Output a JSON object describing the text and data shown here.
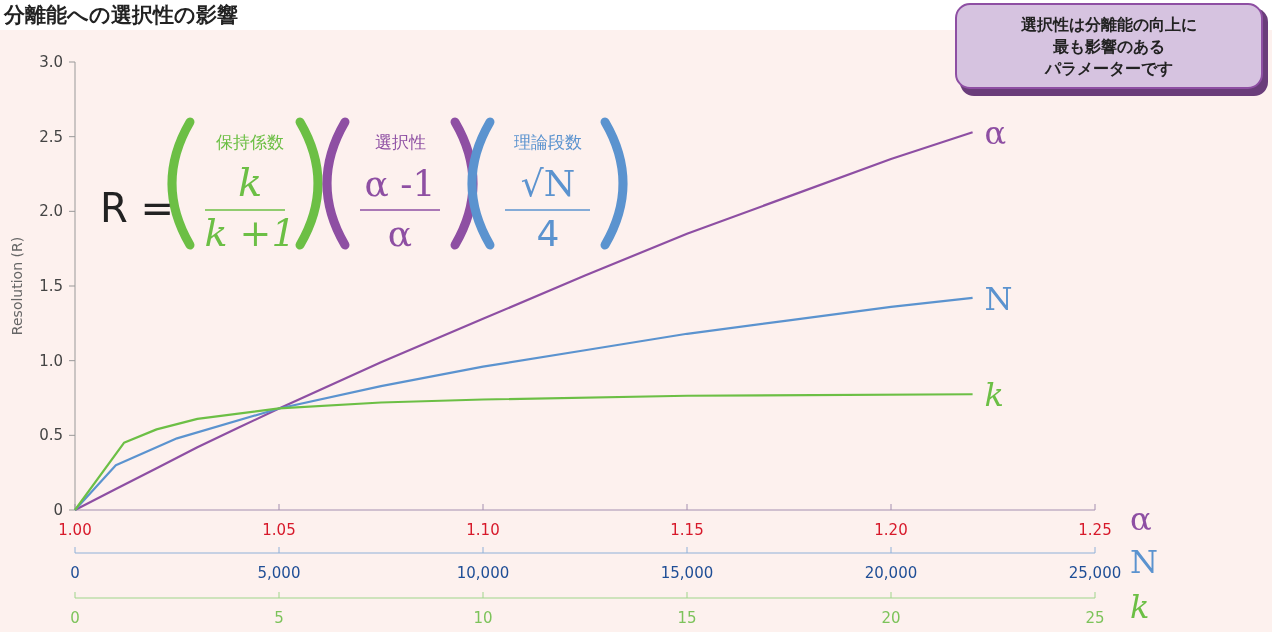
{
  "chart_data": [
    {
      "type": "line",
      "title": "分離能への選択性の影響",
      "ylabel": "Resolution (R)",
      "xlabel": "α",
      "x2label": "N",
      "ylim": [
        0,
        3
      ],
      "yticks": [
        0,
        {
          "value": 0.5,
          "label": "0.5"
        },
        {
          "value": 1,
          "label": "1.0"
        },
        {
          "value": 1.5,
          "label": "1.5"
        },
        {
          "value": 2,
          "label": "2.0"
        },
        {
          "value": 2.5,
          "label": "2.5"
        },
        {
          "value": 3,
          "label": "3.0"
        }
      ],
      "xlim": [
        1,
        1.25
      ],
      "xticks": [
        {
          "value": 1,
          "label": "1.00"
        },
        {
          "value": 1.05,
          "label": "1.05"
        },
        {
          "value": 1.1,
          "label": "1.10"
        },
        {
          "value": 1.15,
          "label": "1.15"
        },
        {
          "value": 1.2,
          "label": "1.20"
        },
        {
          "value": 1.25,
          "label": "1.25"
        }
      ],
      "x2lim": [
        0,
        25000
      ],
      "x2ticks": [
        0,
        {
          "value": 5000,
          "label": "5,000"
        },
        {
          "value": 10000,
          "label": "10,000"
        },
        {
          "value": 15000,
          "label": "15,000"
        },
        {
          "value": 20000,
          "label": "20,000"
        },
        {
          "value": 25000,
          "label": "25,000"
        }
      ],
      "grid": false,
      "marker": "none",
      "line_style": "solid",
      "series": [
        {
          "name": "α",
          "color": "#8e4fa3",
          "x": [
            1,
            1.01,
            1.02,
            1.03,
            1.04,
            1.05,
            1.075,
            1.1,
            1.125,
            1.15,
            1.175,
            1.2,
            1.22
          ],
          "values": [
            0,
            0.14,
            0.28,
            0.42,
            0.55,
            0.68,
            0.99,
            1.28,
            1.57,
            1.85,
            2.1,
            2.35,
            2.53
          ]
        },
        {
          "name": "N",
          "color": "#5b93cf",
          "axis": "x2",
          "x": [
            0,
            1000,
            2500,
            5000,
            7500,
            10000,
            12500,
            15000,
            17500,
            20000,
            22000
          ],
          "values": [
            0,
            0.3,
            0.48,
            0.68,
            0.83,
            0.96,
            1.07,
            1.18,
            1.27,
            1.36,
            1.42
          ]
        }
      ],
      "annotations": [
        "R =",
        "保持係数",
        "k",
        "k +1",
        "選択性",
        "α -1",
        "α",
        "理論段数",
        "√N",
        "4",
        "選択性は分離能の向上に",
        "最も影響のある",
        "パラメーターです"
      ]
    },
    {
      "type": "line",
      "xlabel": "k",
      "ylim": [
        0,
        3
      ],
      "xlim": [
        0,
        25
      ],
      "xticks": [
        0,
        5,
        10,
        15,
        20,
        25
      ],
      "tick_labels": "x",
      "grid": false,
      "marker": "none",
      "line_style": "solid",
      "series": [
        {
          "name": "k",
          "color": "#6cbf45",
          "x": [
            0,
            1.2,
            2,
            3,
            5,
            7.5,
            10,
            15,
            22
          ],
          "values": [
            0,
            0.45,
            0.54,
            0.61,
            0.68,
            0.72,
            0.74,
            0.765,
            0.775
          ]
        }
      ]
    }
  ]
}
